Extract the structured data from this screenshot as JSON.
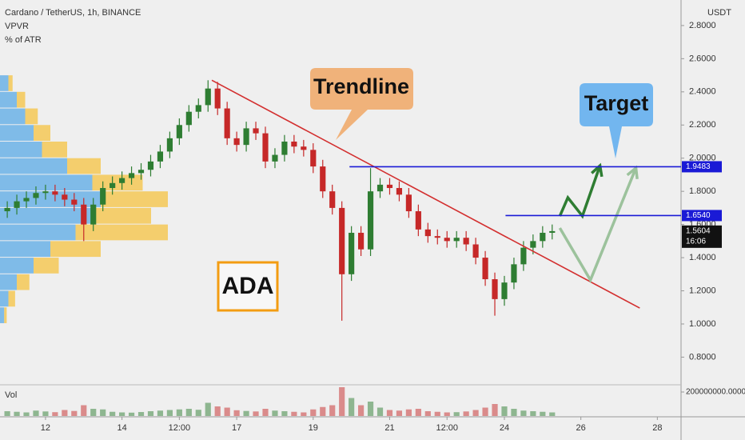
{
  "chart_data": {
    "type": "candlestick",
    "title": "Cardano / TetherUS, 1h, BINANCE",
    "indicators": [
      "VPVR",
      "% of ATR"
    ],
    "currency": "USDT",
    "volume_label": "Vol",
    "up_color": "#2e7d32",
    "down_color": "#c62828",
    "xlim": [
      10.81,
      28.62
    ],
    "xticks": [
      12,
      14,
      {
        "value": 15.5,
        "label": "12:00"
      },
      17,
      19,
      21,
      {
        "value": 22.5,
        "label": "12:00"
      },
      24,
      26,
      28
    ],
    "ylim": [
      0.638,
      2.954
    ],
    "yticks": [
      {
        "value": 0.8,
        "label": "0.8000"
      },
      {
        "value": 1.0,
        "label": "1.0000"
      },
      {
        "value": 1.2,
        "label": "1.2000"
      },
      {
        "value": 1.4,
        "label": "1.4000"
      },
      {
        "value": 1.6,
        "label": "1.6000"
      },
      {
        "value": 1.8,
        "label": "1.8000"
      },
      {
        "value": 2.0,
        "label": "2.0000"
      },
      {
        "value": 2.2,
        "label": "2.2000"
      },
      {
        "value": 2.4,
        "label": "2.4000"
      },
      {
        "value": 2.6,
        "label": "2.6000"
      },
      {
        "value": 2.8,
        "label": "2.8000"
      }
    ],
    "vol_ylim": [
      0,
      260000000
    ],
    "vol_yticks": [
      {
        "value": 200000000,
        "label": "200000000.0000"
      }
    ],
    "x": [
      11,
      11.25,
      11.5,
      11.75,
      12,
      12.25,
      12.5,
      12.75,
      13,
      13.25,
      13.5,
      13.75,
      14,
      14.25,
      14.5,
      14.75,
      15,
      15.25,
      15.5,
      15.75,
      16,
      16.25,
      16.5,
      16.75,
      17,
      17.25,
      17.5,
      17.75,
      18,
      18.25,
      18.5,
      18.75,
      19,
      19.25,
      19.5,
      19.75,
      20,
      20.25,
      20.5,
      20.75,
      21,
      21.25,
      21.5,
      21.75,
      22,
      22.25,
      22.5,
      22.75,
      23,
      23.25,
      23.5,
      23.75,
      24,
      24.25,
      24.5,
      24.75,
      25,
      25.25
    ],
    "open": [
      1.68,
      1.7,
      1.74,
      1.76,
      1.79,
      1.8,
      1.78,
      1.75,
      1.72,
      1.6,
      1.72,
      1.82,
      1.85,
      1.88,
      1.91,
      1.93,
      1.98,
      2.04,
      2.12,
      2.2,
      2.28,
      2.32,
      2.42,
      2.3,
      2.12,
      2.08,
      2.18,
      2.15,
      1.98,
      2.02,
      2.1,
      2.07,
      2.05,
      1.95,
      1.8,
      1.7,
      1.3,
      1.55,
      1.45,
      1.8,
      1.84,
      1.82,
      1.78,
      1.68,
      1.57,
      1.53,
      1.52,
      1.5,
      1.52,
      1.48,
      1.4,
      1.27,
      1.15,
      1.25,
      1.36,
      1.46,
      1.5,
      1.55
    ],
    "high": [
      1.74,
      1.78,
      1.8,
      1.83,
      1.84,
      1.84,
      1.82,
      1.79,
      1.76,
      1.76,
      1.86,
      1.89,
      1.92,
      1.95,
      1.97,
      2.02,
      2.08,
      2.16,
      2.24,
      2.32,
      2.36,
      2.47,
      2.46,
      2.34,
      2.16,
      2.22,
      2.22,
      2.19,
      2.06,
      2.14,
      2.14,
      2.11,
      2.09,
      1.99,
      1.84,
      1.74,
      1.59,
      1.59,
      1.94,
      1.88,
      1.88,
      1.86,
      1.82,
      1.72,
      1.61,
      1.57,
      1.56,
      1.56,
      1.56,
      1.52,
      1.44,
      1.31,
      1.29,
      1.4,
      1.5,
      1.54,
      1.59,
      1.6
    ],
    "low": [
      1.64,
      1.66,
      1.7,
      1.72,
      1.75,
      1.74,
      1.71,
      1.68,
      1.5,
      1.56,
      1.68,
      1.78,
      1.81,
      1.84,
      1.87,
      1.89,
      1.94,
      2.0,
      2.08,
      2.16,
      2.24,
      2.28,
      2.26,
      2.08,
      2.04,
      2.04,
      2.11,
      1.94,
      1.94,
      1.98,
      2.03,
      2.01,
      1.91,
      1.76,
      1.66,
      1.02,
      1.26,
      1.41,
      1.41,
      1.76,
      1.78,
      1.74,
      1.64,
      1.53,
      1.49,
      1.48,
      1.46,
      1.46,
      1.44,
      1.36,
      1.23,
      1.05,
      1.11,
      1.21,
      1.32,
      1.42,
      1.46,
      1.51
    ],
    "close": [
      1.7,
      1.74,
      1.76,
      1.79,
      1.8,
      1.78,
      1.75,
      1.72,
      1.6,
      1.72,
      1.82,
      1.85,
      1.88,
      1.91,
      1.93,
      1.98,
      2.04,
      2.12,
      2.2,
      2.28,
      2.32,
      2.42,
      2.3,
      2.12,
      2.08,
      2.18,
      2.15,
      1.98,
      2.02,
      2.1,
      2.07,
      2.05,
      1.95,
      1.8,
      1.7,
      1.3,
      1.55,
      1.45,
      1.8,
      1.84,
      1.82,
      1.78,
      1.68,
      1.57,
      1.53,
      1.52,
      1.5,
      1.52,
      1.48,
      1.4,
      1.27,
      1.15,
      1.25,
      1.36,
      1.46,
      1.5,
      1.55,
      1.56
    ],
    "volume": [
      40000000,
      35000000,
      30000000,
      45000000,
      38000000,
      32000000,
      50000000,
      42000000,
      90000000,
      60000000,
      55000000,
      35000000,
      30000000,
      28000000,
      33000000,
      40000000,
      45000000,
      50000000,
      55000000,
      60000000,
      52000000,
      110000000,
      80000000,
      70000000,
      48000000,
      42000000,
      38000000,
      60000000,
      45000000,
      40000000,
      35000000,
      30000000,
      55000000,
      75000000,
      90000000,
      240000000,
      150000000,
      90000000,
      120000000,
      70000000,
      50000000,
      45000000,
      55000000,
      60000000,
      40000000,
      35000000,
      30000000,
      32000000,
      38000000,
      50000000,
      70000000,
      100000000,
      80000000,
      60000000,
      45000000,
      40000000,
      35000000,
      30000000
    ],
    "vpvr": {
      "levels": [
        1.0,
        1.1,
        1.2,
        1.3,
        1.4,
        1.5,
        1.6,
        1.7,
        1.8,
        1.9,
        2.0,
        2.1,
        2.2,
        2.3,
        2.4
      ],
      "up": [
        5,
        10,
        20,
        40,
        60,
        90,
        110,
        120,
        110,
        80,
        50,
        40,
        30,
        20,
        10
      ],
      "down": [
        3,
        8,
        15,
        30,
        60,
        110,
        70,
        80,
        60,
        40,
        30,
        20,
        15,
        10,
        5
      ],
      "up_color": "#5aa9e6",
      "down_color": "#f5c342"
    },
    "trendline": {
      "x": [
        16.35,
        27.54
      ],
      "y": [
        2.47,
        1.096
      ],
      "color": "#d32f2f"
    },
    "levels": [
      {
        "value": 1.9483,
        "from": 19.95
      },
      {
        "value": 1.654,
        "label": "1.6540",
        "from": 24.03
      }
    ],
    "level_color": "#1a1ad6",
    "last_price": {
      "value": 1.5604,
      "countdown": "16:06"
    },
    "projections": [
      {
        "x": [
          25.45,
          25.66,
          26.04,
          26.5
        ],
        "y": [
          1.651,
          1.762,
          1.651,
          1.955
        ],
        "color": "#2e7d32"
      },
      {
        "x": [
          25.45,
          26.25,
          27.44
        ],
        "y": [
          1.579,
          1.265,
          1.941
        ],
        "color": "#9cc29c"
      }
    ],
    "annotations": [
      "Trendline",
      "Target",
      "ADA"
    ]
  }
}
